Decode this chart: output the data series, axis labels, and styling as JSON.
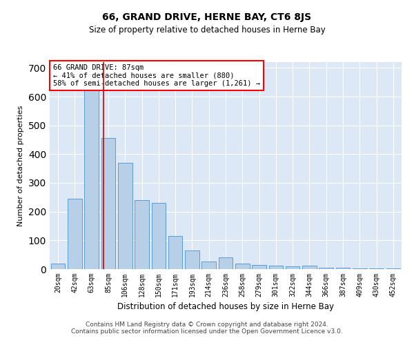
{
  "title": "66, GRAND DRIVE, HERNE BAY, CT6 8JS",
  "subtitle": "Size of property relative to detached houses in Herne Bay",
  "xlabel": "Distribution of detached houses by size in Herne Bay",
  "ylabel": "Number of detached properties",
  "footer_line1": "Contains HM Land Registry data © Crown copyright and database right 2024.",
  "footer_line2": "Contains public sector information licensed under the Open Government Licence v3.0.",
  "annotation_line1": "66 GRAND DRIVE: 87sqm",
  "annotation_line2": "← 41% of detached houses are smaller (880)",
  "annotation_line3": "58% of semi-detached houses are larger (1,261) →",
  "bar_color": "#b8cfe8",
  "bar_edge_color": "#5b9bd5",
  "redline_color": "#cc0000",
  "bg_color": "#dce8f5",
  "grid_color": "#ffffff",
  "categories": [
    "20sqm",
    "42sqm",
    "63sqm",
    "85sqm",
    "106sqm",
    "128sqm",
    "150sqm",
    "171sqm",
    "193sqm",
    "214sqm",
    "236sqm",
    "258sqm",
    "279sqm",
    "301sqm",
    "322sqm",
    "344sqm",
    "366sqm",
    "387sqm",
    "409sqm",
    "430sqm",
    "452sqm"
  ],
  "values": [
    20,
    245,
    630,
    455,
    370,
    240,
    230,
    115,
    65,
    27,
    40,
    20,
    15,
    13,
    10,
    13,
    5,
    5,
    3,
    3,
    3
  ],
  "redline_x": 2.72,
  "ylim": [
    0,
    720
  ],
  "yticks": [
    0,
    100,
    200,
    300,
    400,
    500,
    600,
    700
  ],
  "title_fontsize": 10,
  "subtitle_fontsize": 8.5,
  "ylabel_fontsize": 8,
  "xlabel_fontsize": 8.5,
  "tick_fontsize": 7,
  "annot_fontsize": 7.5,
  "footer_fontsize": 6.5
}
